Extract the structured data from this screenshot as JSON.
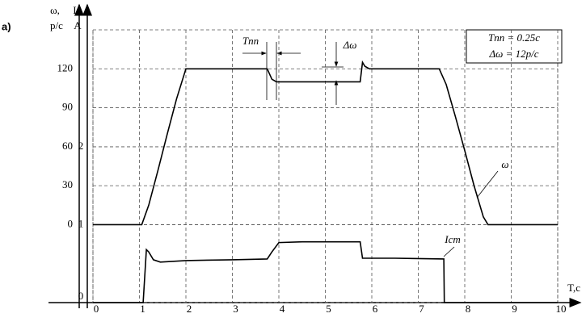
{
  "chart_data": {
    "type": "line",
    "panel_label": "a)",
    "ylabel": [
      "ω,",
      "p/c"
    ],
    "y2label": [
      "I,",
      "A"
    ],
    "xlabel": "T,c",
    "xlim": [
      0,
      10
    ],
    "xticks": [
      0,
      1,
      2,
      3,
      4,
      5,
      6,
      7,
      8,
      9,
      10
    ],
    "ylim": [
      -60,
      150
    ],
    "yticks": [
      0,
      30,
      60,
      90,
      120
    ],
    "y2lim": [
      0,
      3.5
    ],
    "y2ticks": [
      0,
      1,
      2
    ],
    "grid": true,
    "annotations": [
      "Tпп",
      "Δω"
    ],
    "info_box": [
      "Tпп = 0.25c",
      "Δω = 12p/c"
    ],
    "series": [
      {
        "name": "ω",
        "color": "#000000",
        "x": [
          0,
          1.05,
          1.2,
          1.4,
          1.6,
          1.8,
          2.0,
          2.5,
          3.0,
          3.5,
          3.75,
          3.85,
          3.95,
          4.5,
          5.0,
          5.5,
          5.75,
          5.8,
          5.85,
          5.95,
          6.5,
          7.0,
          7.45,
          7.6,
          7.8,
          8.0,
          8.2,
          8.4,
          8.5,
          9,
          9.5,
          10
        ],
        "values": [
          0,
          0,
          15,
          42,
          70,
          97,
          120,
          120,
          120,
          120,
          120,
          112,
          110,
          110,
          110,
          110,
          110,
          125,
          122,
          120,
          120,
          120,
          120,
          108,
          83,
          57,
          30,
          6,
          0,
          0,
          0,
          0
        ]
      },
      {
        "name": "Iст",
        "color": "#000000",
        "axis": "y2",
        "x": [
          0,
          1.08,
          1.15,
          1.2,
          1.3,
          1.45,
          2,
          3,
          3.75,
          3.85,
          4.0,
          4.5,
          5,
          5.75,
          5.8,
          6.5,
          7.55,
          7.56,
          8,
          9,
          10
        ],
        "values": [
          0,
          0,
          0.68,
          0.65,
          0.55,
          0.52,
          0.54,
          0.55,
          0.56,
          0.65,
          0.77,
          0.78,
          0.78,
          0.78,
          0.57,
          0.57,
          0.56,
          0,
          0,
          0,
          0
        ]
      }
    ]
  }
}
